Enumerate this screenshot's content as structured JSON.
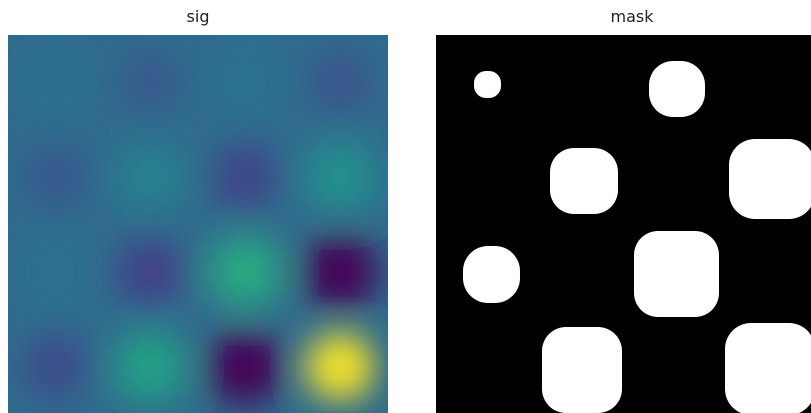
{
  "panels": [
    {
      "title": "sig"
    },
    {
      "title": "mask"
    }
  ]
}
